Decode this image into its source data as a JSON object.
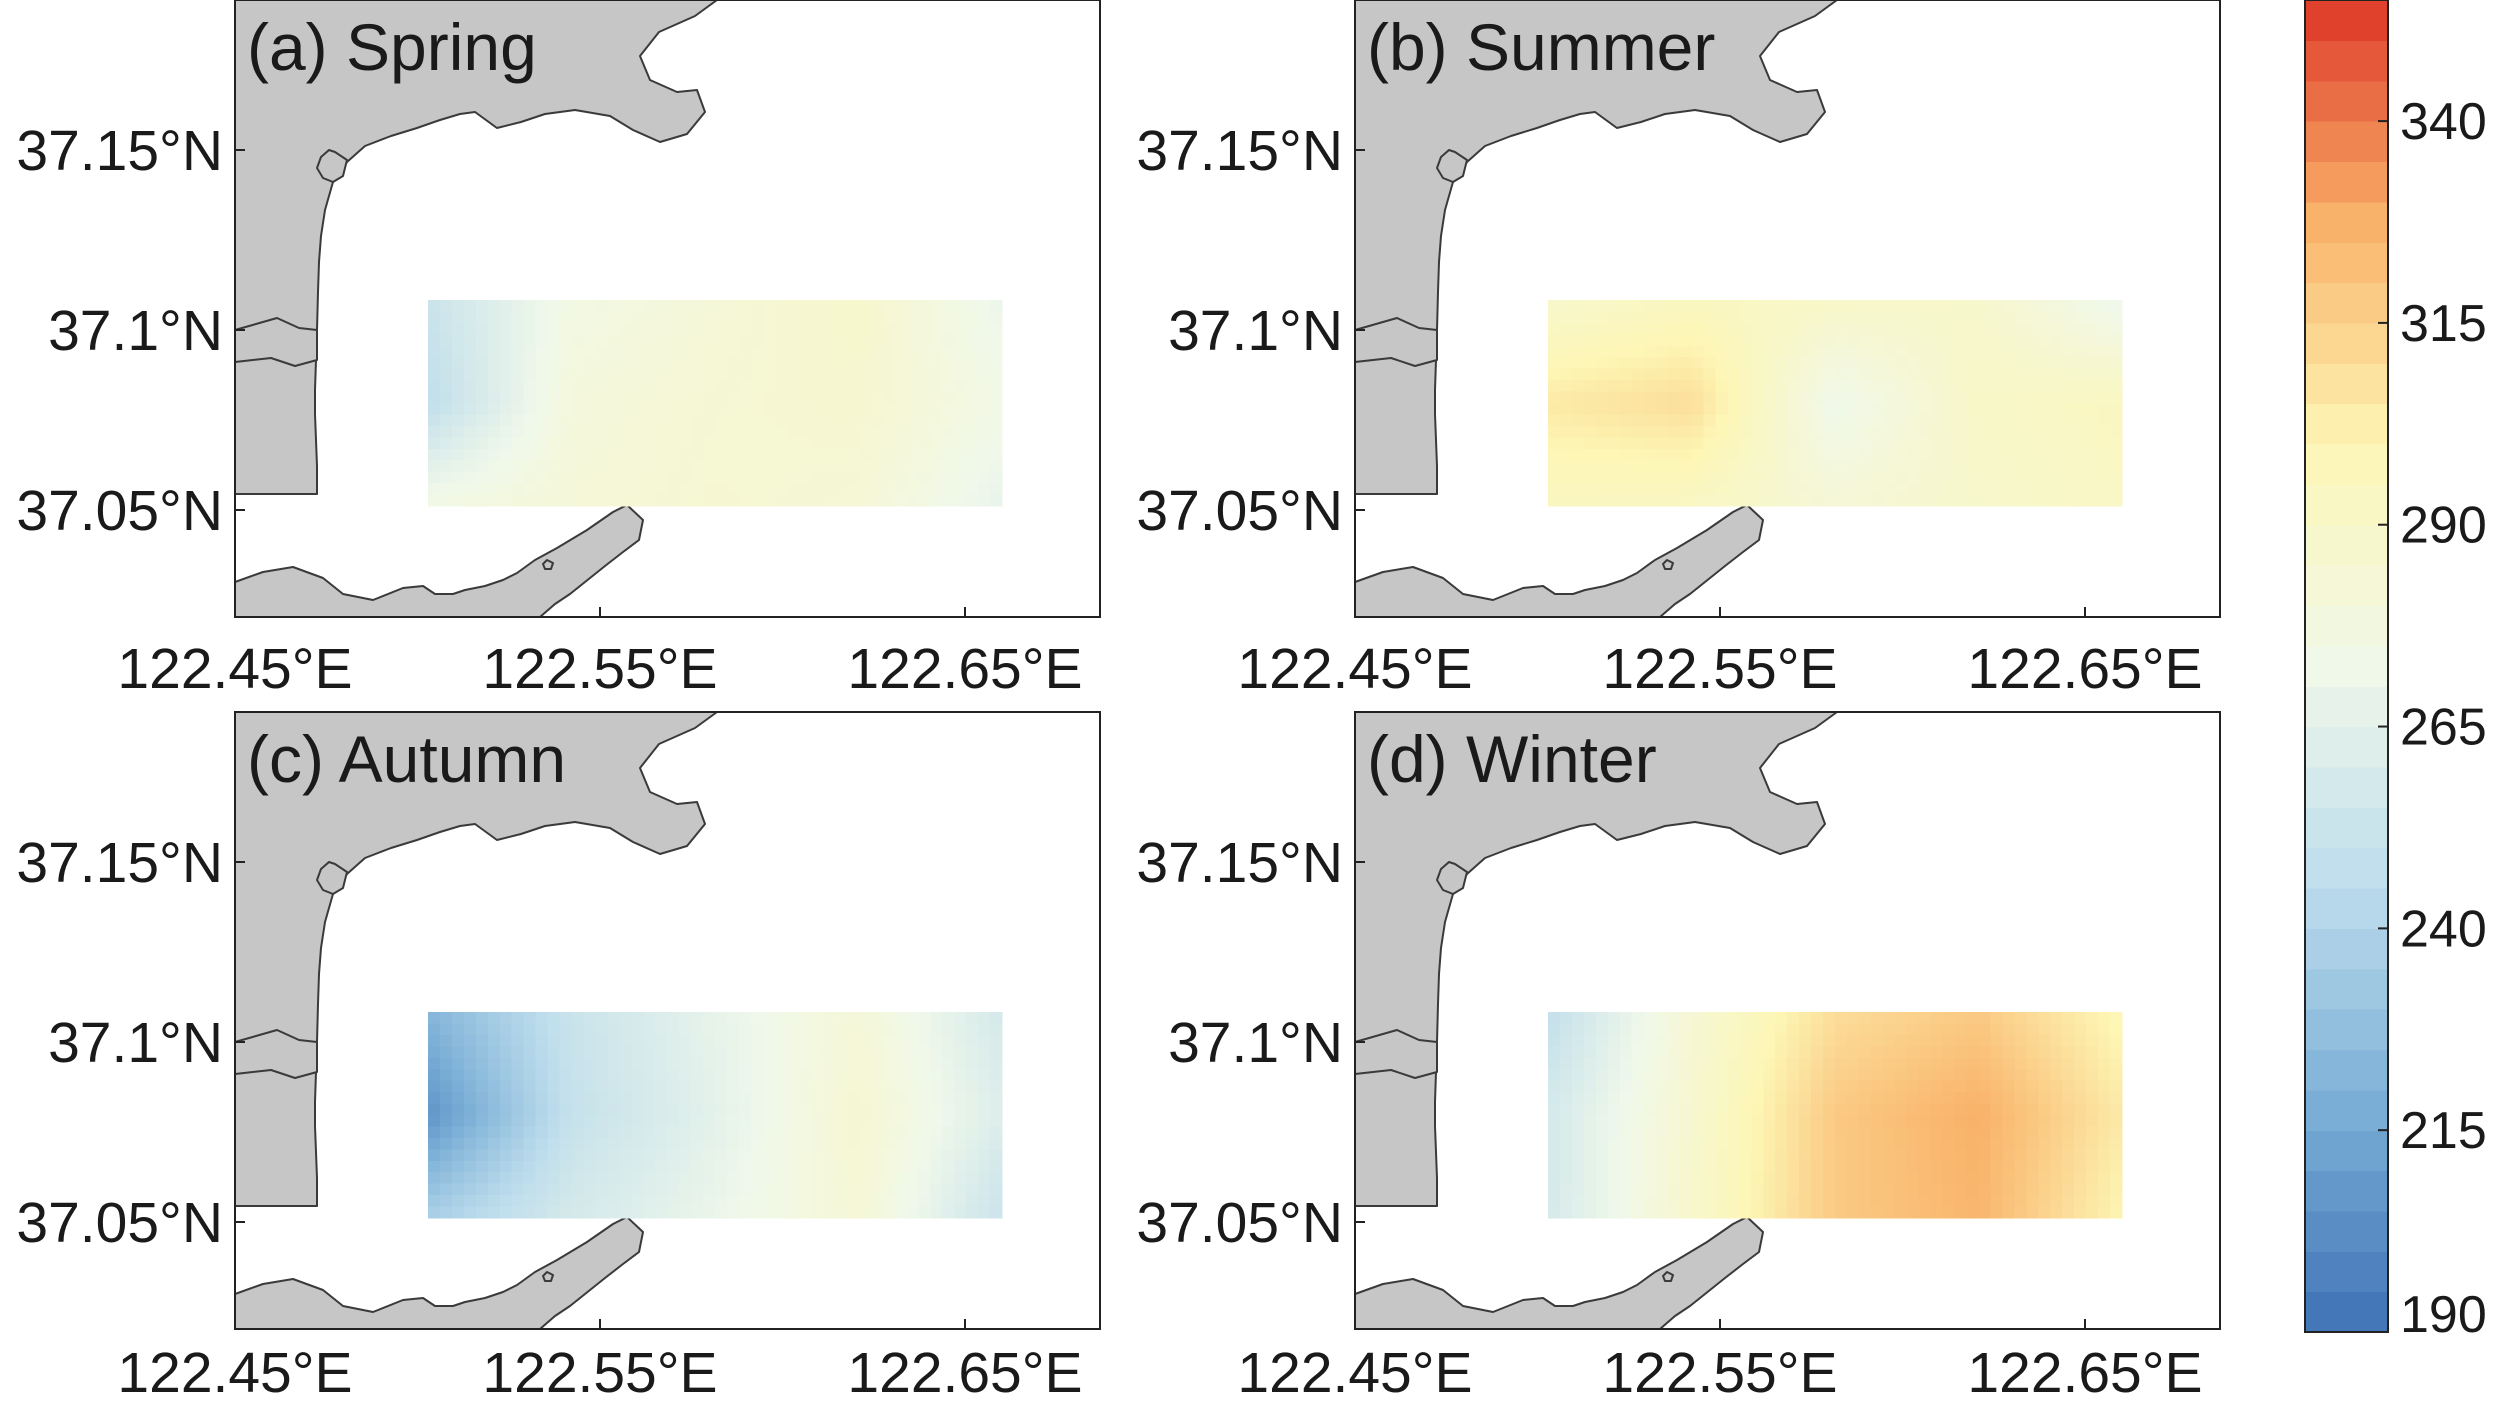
{
  "chart_data": {
    "type": "heatmap",
    "colorbar": {
      "min": 190,
      "max": 355,
      "ticks": [
        "190",
        "215",
        "240",
        "265",
        "290",
        "315",
        "340"
      ],
      "tick_values": [
        190,
        215,
        240,
        265,
        290,
        315,
        340
      ],
      "colors": [
        "#3f72b5",
        "#7aaed6",
        "#bcdcec",
        "#f0f8ea",
        "#fdf6b5",
        "#f9b269",
        "#de3627"
      ]
    },
    "grid": {
      "lon": [
        122.48,
        122.52,
        122.56,
        122.6,
        122.64
      ],
      "lat": [
        37.05,
        37.0775,
        37.105
      ]
    },
    "panels": [
      {
        "title": "(a) Spring",
        "x_ticks": [
          "122.45°E",
          "122.55°E",
          "122.65°E"
        ],
        "y_ticks": [
          "37.15°N",
          "37.1°N",
          "37.05°N"
        ],
        "values": [
          [
            276,
            282,
            285,
            283,
            268
          ],
          [
            247,
            280,
            284,
            286,
            275
          ],
          [
            252,
            276,
            282,
            288,
            270
          ]
        ]
      },
      {
        "title": "(b) Summer",
        "x_ticks": [
          "122.45°E",
          "122.55°E",
          "122.65°E"
        ],
        "y_ticks": [
          "37.15°N",
          "37.1°N",
          "37.05°N"
        ],
        "values": [
          [
            294,
            292,
            283,
            288,
            292
          ],
          [
            305,
            310,
            272,
            290,
            294
          ],
          [
            288,
            294,
            290,
            288,
            270
          ]
        ]
      },
      {
        "title": "(c) Autumn",
        "x_ticks": [
          "122.45°E",
          "122.55°E",
          "122.65°E"
        ],
        "y_ticks": [
          "37.15°N",
          "37.1°N",
          "37.05°N"
        ],
        "values": [
          [
            238,
            258,
            270,
            283,
            252
          ],
          [
            205,
            250,
            266,
            285,
            262
          ],
          [
            222,
            252,
            268,
            282,
            258
          ]
        ]
      },
      {
        "title": "(d) Winter",
        "x_ticks": [
          "122.45°E",
          "122.55°E",
          "122.65°E"
        ],
        "y_ticks": [
          "37.15°N",
          "37.1°N",
          "37.05°N"
        ],
        "values": [
          [
            258,
            288,
            318,
            326,
            300
          ],
          [
            258,
            286,
            318,
            328,
            305
          ],
          [
            248,
            284,
            310,
            318,
            298
          ]
        ]
      }
    ]
  }
}
